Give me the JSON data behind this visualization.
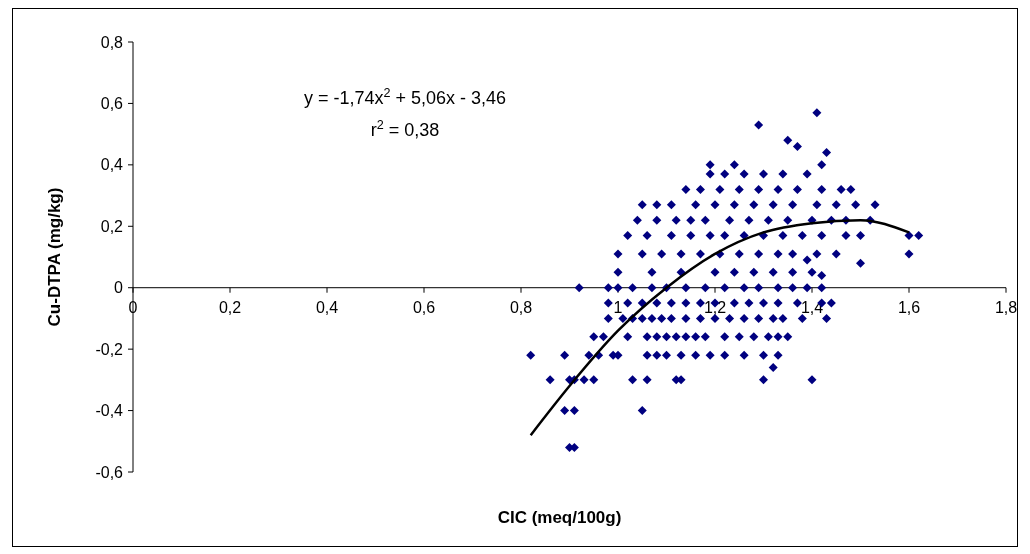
{
  "chart_data": {
    "type": "scatter",
    "xlabel": "CIC (meq/100g)",
    "ylabel": "Cu-DTPA (mg/kg)",
    "annotations": [
      "y = -1,74x$^{2}$ + 5,06x - 3,46",
      "r$^{2}$ = 0,38"
    ],
    "xlim": [
      0,
      1.8
    ],
    "ylim": [
      -0.6,
      0.8
    ],
    "xticks": [
      0,
      {
        "value": 0.2,
        "label": "0,2"
      },
      {
        "value": 0.4,
        "label": "0,4"
      },
      {
        "value": 0.6,
        "label": "0,6"
      },
      {
        "value": 0.8,
        "label": "0,8"
      },
      1,
      {
        "value": 1.2,
        "label": "1,2"
      },
      {
        "value": 1.4,
        "label": "1,4"
      },
      {
        "value": 1.6,
        "label": "1,6"
      },
      {
        "value": 1.8,
        "label": "1,8"
      }
    ],
    "yticks": [
      {
        "value": -0.6,
        "label": "-0,6"
      },
      {
        "value": -0.4,
        "label": "-0,4"
      },
      {
        "value": -0.2,
        "label": "-0,2"
      },
      0,
      {
        "value": 0.2,
        "label": "0,2"
      },
      {
        "value": 0.4,
        "label": "0,4"
      },
      {
        "value": 0.6,
        "label": "0,6"
      },
      {
        "value": 0.8,
        "label": "0,8"
      }
    ],
    "grid": false,
    "series": [
      {
        "color": "#000080",
        "marker": "diamond",
        "x": [
          0.82,
          0.86,
          0.89,
          0.9,
          0.91,
          0.89,
          0.91,
          0.9,
          0.91,
          0.93,
          0.95,
          0.96,
          0.94,
          0.99,
          1.0,
          1.05,
          1.03,
          1.06,
          1.12,
          1.13,
          1.06,
          1.08,
          1.1,
          1.13,
          1.16,
          1.19,
          1.22,
          1.26,
          1.3,
          1.33,
          1.3,
          1.4,
          1.32,
          0.95,
          0.97,
          1.02,
          1.06,
          1.08,
          1.1,
          1.12,
          1.14,
          1.16,
          1.18,
          1.22,
          1.25,
          1.28,
          1.31,
          1.33,
          1.35,
          0.98,
          1.01,
          1.03,
          1.05,
          1.07,
          1.09,
          1.11,
          1.14,
          1.17,
          1.2,
          1.23,
          1.26,
          1.29,
          1.32,
          1.34,
          1.38,
          1.43,
          0.98,
          1.02,
          1.05,
          1.08,
          1.11,
          1.14,
          1.17,
          1.2,
          1.24,
          1.27,
          1.3,
          1.33,
          1.37,
          1.42,
          1.44,
          0.92,
          0.98,
          1.0,
          1.03,
          1.07,
          1.1,
          1.14,
          1.18,
          1.22,
          1.26,
          1.29,
          1.33,
          1.36,
          1.39,
          1.42,
          1.0,
          1.07,
          1.13,
          1.2,
          1.24,
          1.28,
          1.32,
          1.36,
          1.4,
          1.5,
          1.42,
          1.39,
          1.0,
          1.05,
          1.09,
          1.13,
          1.17,
          1.21,
          1.25,
          1.29,
          1.33,
          1.36,
          1.41,
          1.45,
          1.6,
          1.02,
          1.06,
          1.11,
          1.15,
          1.19,
          1.22,
          1.26,
          1.3,
          1.34,
          1.38,
          1.42,
          1.47,
          1.5,
          1.6,
          1.62,
          1.04,
          1.08,
          1.12,
          1.15,
          1.18,
          1.23,
          1.27,
          1.31,
          1.35,
          1.4,
          1.44,
          1.47,
          1.52,
          1.05,
          1.08,
          1.11,
          1.16,
          1.2,
          1.24,
          1.28,
          1.32,
          1.36,
          1.41,
          1.45,
          1.49,
          1.53,
          1.14,
          1.17,
          1.21,
          1.25,
          1.29,
          1.33,
          1.37,
          1.42,
          1.46,
          1.48,
          1.19,
          1.22,
          1.26,
          1.3,
          1.34,
          1.39,
          1.19,
          1.24,
          1.42,
          1.37,
          1.43,
          1.35,
          1.29,
          1.41
        ],
        "values": [
          -0.22,
          -0.3,
          -0.22,
          -0.3,
          -0.3,
          -0.4,
          -0.4,
          -0.52,
          -0.52,
          -0.3,
          -0.3,
          -0.22,
          -0.22,
          -0.22,
          -0.22,
          -0.4,
          -0.3,
          -0.3,
          -0.3,
          -0.3,
          -0.22,
          -0.22,
          -0.22,
          -0.22,
          -0.22,
          -0.22,
          -0.22,
          -0.22,
          -0.22,
          -0.22,
          -0.3,
          -0.3,
          -0.26,
          -0.16,
          -0.16,
          -0.16,
          -0.16,
          -0.16,
          -0.16,
          -0.16,
          -0.16,
          -0.16,
          -0.16,
          -0.16,
          -0.16,
          -0.16,
          -0.16,
          -0.16,
          -0.16,
          -0.1,
          -0.1,
          -0.1,
          -0.1,
          -0.1,
          -0.1,
          -0.1,
          -0.1,
          -0.1,
          -0.1,
          -0.1,
          -0.1,
          -0.1,
          -0.1,
          -0.1,
          -0.1,
          -0.1,
          -0.05,
          -0.05,
          -0.05,
          -0.05,
          -0.05,
          -0.05,
          -0.05,
          -0.05,
          -0.05,
          -0.05,
          -0.05,
          -0.05,
          -0.05,
          -0.05,
          -0.05,
          0,
          0,
          0,
          0,
          0,
          0,
          0,
          0,
          0,
          0,
          0,
          0,
          0,
          0,
          0,
          0.05,
          0.05,
          0.05,
          0.05,
          0.05,
          0.05,
          0.05,
          0.05,
          0.05,
          0.08,
          0.04,
          0.09,
          0.11,
          0.11,
          0.11,
          0.11,
          0.11,
          0.11,
          0.11,
          0.11,
          0.11,
          0.11,
          0.11,
          0.11,
          0.11,
          0.17,
          0.17,
          0.17,
          0.17,
          0.17,
          0.17,
          0.17,
          0.17,
          0.17,
          0.17,
          0.17,
          0.17,
          0.17,
          0.17,
          0.17,
          0.22,
          0.22,
          0.22,
          0.22,
          0.22,
          0.22,
          0.22,
          0.22,
          0.22,
          0.22,
          0.22,
          0.22,
          0.22,
          0.27,
          0.27,
          0.27,
          0.27,
          0.27,
          0.27,
          0.27,
          0.27,
          0.27,
          0.27,
          0.27,
          0.27,
          0.27,
          0.32,
          0.32,
          0.32,
          0.32,
          0.32,
          0.32,
          0.32,
          0.32,
          0.32,
          0.32,
          0.37,
          0.37,
          0.37,
          0.37,
          0.37,
          0.37,
          0.4,
          0.4,
          0.4,
          0.46,
          0.44,
          0.48,
          0.53,
          0.57
        ]
      },
      {
        "type": "line",
        "color": "#000000",
        "line_style": "solid",
        "x": [
          0.82,
          0.9,
          1.0,
          1.1,
          1.2,
          1.3,
          1.4,
          1.5,
          1.6
        ],
        "values": [
          -0.48,
          -0.32,
          -0.14,
          0,
          0.11,
          0.18,
          0.21,
          0.22,
          0.18
        ]
      }
    ]
  }
}
